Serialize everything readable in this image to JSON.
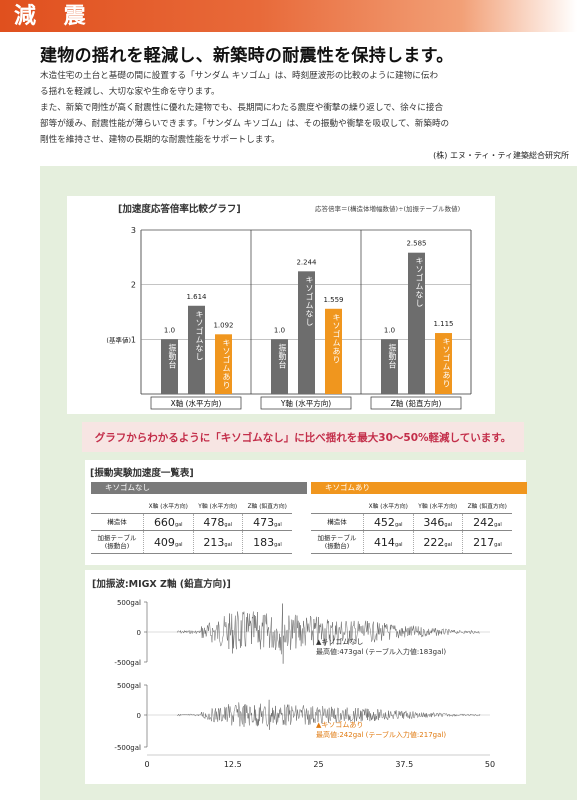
{
  "header": {
    "title": "減 震"
  },
  "headline": "建物の揺れを軽減し、新築時の耐震性を保持します。",
  "body": [
    "木造住宅の土台と基礎の間に設置する「サンダム キソゴム」は、時刻歴波形の比較のように建物に伝わ",
    "る揺れを軽減し、大切な家や生命を守ります。",
    "また、新築で剛性が高く耐震性に優れた建物でも、長期間にわたる震度や衝撃の繰り返しで、徐々に接合",
    "部等が緩み、耐震性能が薄らいできます。「サンダム キソゴム」は、その振動や衝撃を吸収して、新築時の",
    "剛性を維持させ、建物の長期的な耐震性能をサポートします。"
  ],
  "credit": "(株) エヌ・ティ・ティ建築総合研究所",
  "chart": {
    "title": "[加速度応答倍率比較グラフ]",
    "formula": "応答倍率＝(構造体増幅数値)÷(加振テーブル数値)"
  },
  "chart_data": {
    "type": "bar",
    "title": "[加速度応答倍率比較グラフ]",
    "ylim": [
      0,
      3
    ],
    "yticks": [
      "1",
      "2",
      "3"
    ],
    "baseline_label": "(基準値)",
    "groups": [
      {
        "label": "X軸 (水平方向)",
        "bars": [
          {
            "label": "振動台",
            "value": 1.0,
            "text": "1.0",
            "color": "#6d6d6d"
          },
          {
            "label": "キソゴムなし",
            "value": 1.614,
            "text": "1.614",
            "color": "#6d6d6d"
          },
          {
            "label": "キソゴムあり",
            "value": 1.092,
            "text": "1.092",
            "color": "#f0961e"
          }
        ]
      },
      {
        "label": "Y軸 (水平方向)",
        "bars": [
          {
            "label": "振動台",
            "value": 1.0,
            "text": "1.0",
            "color": "#6d6d6d"
          },
          {
            "label": "キソゴムなし",
            "value": 2.244,
            "text": "2.244",
            "color": "#6d6d6d"
          },
          {
            "label": "キソゴムあり",
            "value": 1.559,
            "text": "1.559",
            "color": "#f0961e"
          }
        ]
      },
      {
        "label": "Z軸 (鉛直方向)",
        "bars": [
          {
            "label": "振動台",
            "value": 1.0,
            "text": "1.0",
            "color": "#6d6d6d"
          },
          {
            "label": "キソゴムなし",
            "value": 2.585,
            "text": "2.585",
            "color": "#6d6d6d"
          },
          {
            "label": "キソゴムあり",
            "value": 1.115,
            "text": "1.115",
            "color": "#f0961e"
          }
        ]
      }
    ]
  },
  "message": "グラフからわかるように「キソゴムなし」に比べ揺れを最大30〜50%軽減しています。",
  "table": {
    "title": "[振動実験加速度一覧表]",
    "unit": "gal",
    "without": {
      "tag": "キソゴムなし",
      "headers": [
        "X軸 (水平方向)",
        "Y軸 (水平方向)",
        "Z軸 (鉛直方向)"
      ],
      "rows": [
        {
          "label": "構造体",
          "values": [
            "660",
            "478",
            "473"
          ]
        },
        {
          "label": "加振テ－ブル\n(振動台)",
          "values": [
            "409",
            "213",
            "183"
          ]
        }
      ]
    },
    "with": {
      "tag": "キソゴムあり",
      "headers": [
        "X軸 (水平方向)",
        "Y軸 (水平方向)",
        "Z軸 (鉛直方向)"
      ],
      "rows": [
        {
          "label": "構造体",
          "values": [
            "452",
            "346",
            "242"
          ]
        },
        {
          "label": "加振テ－ブル\n(振動台)",
          "values": [
            "414",
            "222",
            "217"
          ]
        }
      ]
    }
  },
  "wave": {
    "title": "[加振波:MIGX Z軸 (鉛直方向)]",
    "yticks": [
      "500gal",
      "0",
      "-500gal"
    ],
    "xticks": [
      "0",
      "12.5",
      "25",
      "37.5",
      "50"
    ],
    "top_note_1": "▲キソゴムなし",
    "top_note_2": "最高値:473gal (テーブル入力値:183gal)",
    "bottom_note_1": "▲キソゴムあり",
    "bottom_note_2": "最高値:242gal (テーブル入力値:217gal)",
    "colors": {
      "text": "#333",
      "orange": "#e07a10"
    }
  }
}
